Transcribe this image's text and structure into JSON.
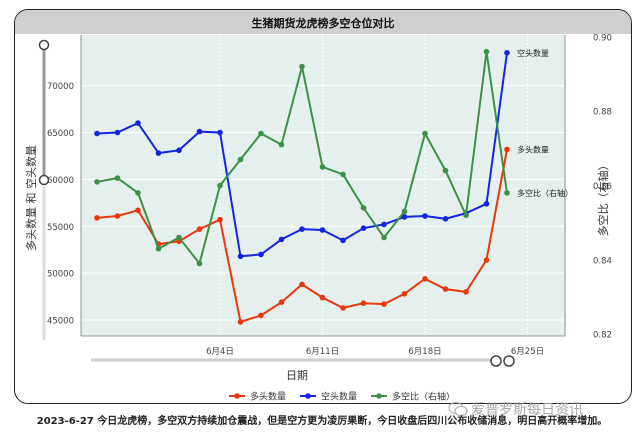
{
  "chart_data": {
    "type": "line",
    "title": "生猪期货龙虎榜多空仓位对比",
    "xlabel": "日期",
    "ylabel_left": "多头数量 和 空头数量",
    "ylabel_right": "多空比（右轴）",
    "x_tick_labels": [
      "6月4日",
      "6月11日",
      "6月18日",
      "6月25日"
    ],
    "x_tick_index": [
      6,
      11,
      16,
      21
    ],
    "y_left_ticks": [
      45000,
      50000,
      55000,
      60000,
      65000,
      70000
    ],
    "y_right_ticks": [
      0.82,
      0.84,
      0.86,
      0.88,
      0.9
    ],
    "y_left_range": [
      43300,
      75400
    ],
    "y_right_range": [
      0.8195,
      0.9005
    ],
    "grid": true,
    "legend_position": "bottom",
    "series": [
      {
        "name": "多头数量",
        "axis": "left",
        "color": "#e8380d",
        "values": [
          55900,
          56100,
          56700,
          53100,
          53400,
          54700,
          55700,
          44800,
          45500,
          46900,
          48800,
          47400,
          46300,
          46800,
          46700,
          47800,
          49400,
          48300,
          48000,
          51400,
          63200
        ],
        "end_label": "多头数量"
      },
      {
        "name": "空头数量",
        "axis": "left",
        "color": "#1325e0",
        "values": [
          64900,
          65000,
          66000,
          62800,
          63100,
          65100,
          65000,
          51800,
          52000,
          53600,
          54700,
          54600,
          53500,
          54800,
          55200,
          56000,
          56100,
          55800,
          56400,
          57400,
          73500
        ],
        "end_label": "空头数量"
      },
      {
        "name": "多空比（右轴）",
        "axis": "right",
        "color": "#3c9146",
        "values": [
          0.861,
          0.862,
          0.858,
          0.843,
          0.846,
          0.839,
          0.86,
          0.867,
          0.874,
          0.871,
          0.892,
          0.865,
          0.863,
          0.854,
          0.846,
          0.853,
          0.874,
          0.864,
          0.852,
          0.896,
          0.858
        ],
        "end_label": "多空比（右轴）"
      }
    ]
  },
  "caption": "2023-6-27 今日龙虎榜，多空双方持续加仓震战，但是空方更为凌厉果断，今日收盘后四川公布收储消息，明日高开概率增加。",
  "watermark": "爱普罗斯每日资讯",
  "colors": {
    "plot_background": "#e5f0ee",
    "title_bar": "#cfcfcf",
    "grid": "#ffffff",
    "slider": "#999999"
  }
}
